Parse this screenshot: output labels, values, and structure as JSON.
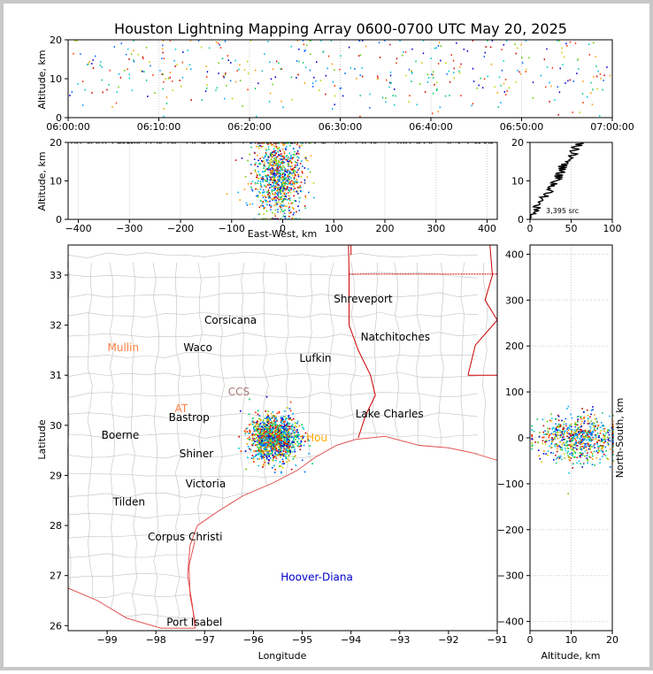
{
  "title": "Houston Lightning Mapping Array 0600-0700 UTC May 20, 2025",
  "colors": {
    "axis": "#000000",
    "grid": "#cccccc",
    "county": "#c0c0c0",
    "state": "#cc0000",
    "coast": "#e04040",
    "source_palette": [
      "#0000cc",
      "#0066ff",
      "#00aaff",
      "#00cccc",
      "#00cc66",
      "#66cc00",
      "#cccc00",
      "#ff9900",
      "#ff3300",
      "#cc0000"
    ]
  },
  "chart_data": [
    {
      "id": "time_height",
      "type": "scatter",
      "xlabel": "",
      "ylabel": "Altitude, km",
      "xlim": [
        "06:00:00",
        "07:00:00"
      ],
      "xticks": [
        "06:00:00",
        "06:10:00",
        "06:20:00",
        "06:30:00",
        "06:40:00",
        "06:50:00",
        "07:00:00"
      ],
      "ylim": [
        0,
        20
      ],
      "yticks": [
        "0",
        "10",
        "20"
      ],
      "grid": true,
      "note_points": "scattered VHF sources at all times 06:00-07:00, altitudes 0-20 km"
    },
    {
      "id": "ew_height",
      "type": "scatter",
      "xlabel": "East-West, km",
      "ylabel": "Altitude, km",
      "xlim": [
        -420,
        420
      ],
      "xticks": [
        "−400",
        "−300",
        "−200",
        "−100",
        "0",
        "100",
        "200",
        "300",
        "400"
      ],
      "ylim": [
        0,
        20
      ],
      "yticks": [
        "0",
        "10",
        "20"
      ],
      "grid": true,
      "cluster": {
        "x_center": -10,
        "x_spread": 25,
        "y_center": 11,
        "y_spread": 5
      }
    },
    {
      "id": "histogram",
      "type": "line",
      "xlabel": "",
      "ylabel": "",
      "xlim": [
        0,
        100
      ],
      "xticks": [
        "0",
        "50",
        "100"
      ],
      "ylim": [
        0,
        20
      ],
      "yticks": [
        "0",
        "10",
        "20"
      ],
      "annotation": "3,395 src",
      "profile": [
        [
          2,
          0
        ],
        [
          4,
          1
        ],
        [
          6,
          2
        ],
        [
          9,
          3
        ],
        [
          12,
          4
        ],
        [
          15,
          5
        ],
        [
          18,
          6
        ],
        [
          22,
          7
        ],
        [
          25,
          8
        ],
        [
          28,
          9
        ],
        [
          32,
          10
        ],
        [
          35,
          11
        ],
        [
          38,
          12
        ],
        [
          40,
          13
        ],
        [
          43,
          14
        ],
        [
          46,
          15
        ],
        [
          50,
          16
        ],
        [
          53,
          17
        ],
        [
          56,
          18
        ],
        [
          60,
          19
        ],
        [
          62,
          20
        ]
      ]
    },
    {
      "id": "plan_view",
      "type": "scatter",
      "xlabel": "Longitude",
      "ylabel": "Latitude",
      "xlim": [
        -99.8,
        -91.0
      ],
      "xticks": [
        "−99",
        "−98",
        "−97",
        "−96",
        "−95",
        "−94",
        "−93",
        "−92",
        "−91"
      ],
      "ylim": [
        25.9,
        33.6
      ],
      "yticks": [
        "26",
        "27",
        "28",
        "29",
        "30",
        "31",
        "32",
        "33"
      ],
      "cluster": {
        "lon_center": -95.6,
        "lon_spread": 0.25,
        "lat_center": 29.75,
        "lat_spread": 0.22
      },
      "cities": [
        {
          "name": "Shreveport",
          "lon": -93.75,
          "lat": 32.52,
          "color": "#000000"
        },
        {
          "name": "Corsicana",
          "lon": -96.47,
          "lat": 32.1,
          "color": "#000000"
        },
        {
          "name": "Natchitoches",
          "lon": -93.09,
          "lat": 31.76,
          "color": "#000000"
        },
        {
          "name": "Mullin",
          "lon": -98.67,
          "lat": 31.55,
          "color": "#ff8040"
        },
        {
          "name": "Waco",
          "lon": -97.14,
          "lat": 31.55,
          "color": "#000000"
        },
        {
          "name": "Lufkin",
          "lon": -94.73,
          "lat": 31.34,
          "color": "#000000"
        },
        {
          "name": "CCS",
          "lon": -96.3,
          "lat": 30.67,
          "color": "#aa7777"
        },
        {
          "name": "AT",
          "lon": -97.48,
          "lat": 30.33,
          "color": "#ff8040"
        },
        {
          "name": "Bastrop",
          "lon": -97.32,
          "lat": 30.16,
          "color": "#000000"
        },
        {
          "name": "Lake Charles",
          "lon": -93.21,
          "lat": 30.23,
          "color": "#000000"
        },
        {
          "name": "Boerne",
          "lon": -98.73,
          "lat": 29.8,
          "color": "#000000"
        },
        {
          "name": "Hou",
          "lon": -94.7,
          "lat": 29.75,
          "color": "#ffaa00"
        },
        {
          "name": "Shiner",
          "lon": -97.17,
          "lat": 29.43,
          "color": "#000000"
        },
        {
          "name": "Victoria",
          "lon": -96.98,
          "lat": 28.83,
          "color": "#000000"
        },
        {
          "name": "Tilden",
          "lon": -98.55,
          "lat": 28.47,
          "color": "#000000"
        },
        {
          "name": "Corpus Christi",
          "lon": -97.4,
          "lat": 27.77,
          "color": "#000000"
        },
        {
          "name": "Hoover-Diana",
          "lon": -94.7,
          "lat": 26.97,
          "color": "#0000cc"
        },
        {
          "name": "Port Isabel",
          "lon": -97.21,
          "lat": 26.07,
          "color": "#000000"
        }
      ]
    },
    {
      "id": "ns_height",
      "type": "scatter",
      "xlabel": "Altitude, km",
      "ylabel": "North-South, km",
      "xlim": [
        0,
        20
      ],
      "xticks": [
        "0",
        "10",
        "20"
      ],
      "ylim": [
        -420,
        420
      ],
      "yticks": [
        "−400",
        "−300",
        "−200",
        "−100",
        "0",
        "100",
        "200",
        "300",
        "400"
      ],
      "grid": true,
      "cluster": {
        "alt_center": 12,
        "alt_spread": 5,
        "y_center": 0,
        "y_spread": 25
      }
    }
  ]
}
